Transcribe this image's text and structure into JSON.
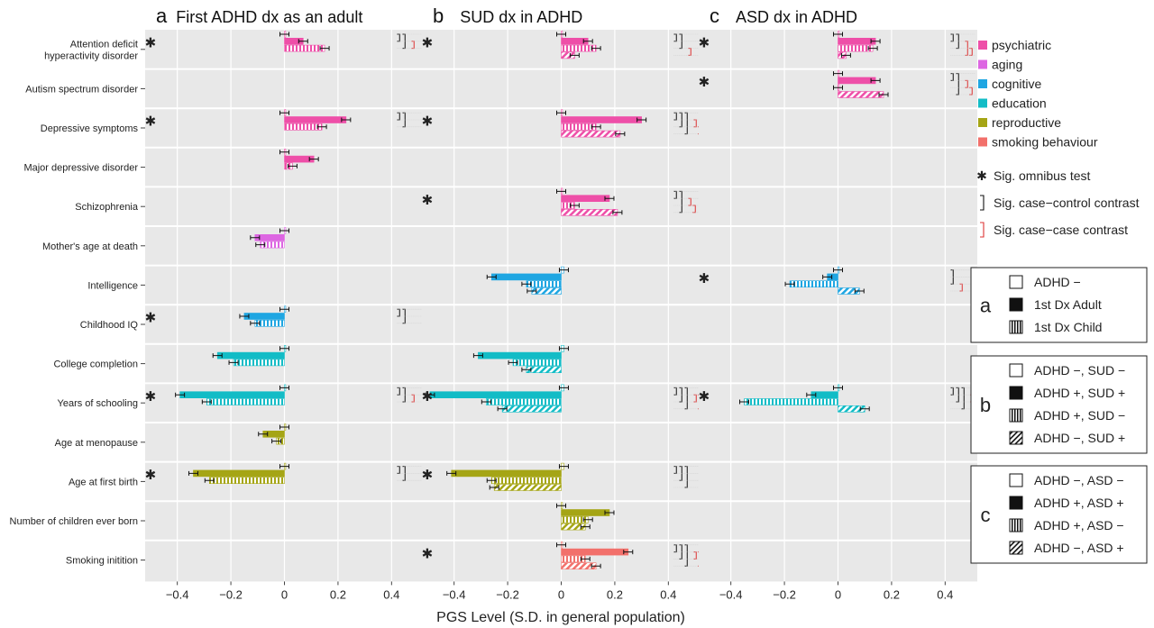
{
  "chart_data": {
    "type": "bar",
    "orientation": "horizontal",
    "xlabel": "PGS Level (S.D. in general population)",
    "xlim": [
      -0.52,
      0.52
    ],
    "xticks": [
      "−0.4",
      "−0.2",
      "0",
      "0.2",
      "0.4"
    ],
    "xtick_values": [
      -0.4,
      -0.2,
      0,
      0.2,
      0.4
    ],
    "grid": true,
    "traits": [
      {
        "name": "Attention deficit\nhyperactivity disorder",
        "domain": "psychiatric"
      },
      {
        "name": "Autism spectrum disorder",
        "domain": "psychiatric"
      },
      {
        "name": "Depressive symptoms",
        "domain": "psychiatric"
      },
      {
        "name": "Major depressive disorder",
        "domain": "psychiatric"
      },
      {
        "name": "Schizophrenia",
        "domain": "psychiatric"
      },
      {
        "name": "Mother's age at death",
        "domain": "aging"
      },
      {
        "name": "Intelligence",
        "domain": "cognitive"
      },
      {
        "name": "Childhood IQ",
        "domain": "cognitive"
      },
      {
        "name": "College completion",
        "domain": "education"
      },
      {
        "name": "Years of schooling",
        "domain": "education"
      },
      {
        "name": "Age at menopause",
        "domain": "reproductive"
      },
      {
        "name": "Age at first birth",
        "domain": "reproductive"
      },
      {
        "name": "Number of children ever born",
        "domain": "reproductive"
      },
      {
        "name": "Smoking initition",
        "domain": "smoking behaviour"
      }
    ],
    "domain_colors": {
      "psychiatric": "#ee4fa8",
      "aging": "#dd66e2",
      "cognitive": "#1fa6e2",
      "education": "#12bcc6",
      "reproductive": "#a5a515",
      "smoking behaviour": "#f2706b"
    },
    "panels": [
      {
        "letter": "a",
        "title": "First ADHD dx as an adult",
        "groups": [
          "ADHD −",
          "1st Dx Adult",
          "1st Dx Child"
        ],
        "rows": [
          {
            "values": [
              0.0,
              0.07,
              0.15
            ],
            "sig_omnibus": true,
            "cc": [
              [
                0,
                1
              ],
              [
                0,
                2
              ]
            ],
            "case_case": [
              [
                1,
                2
              ]
            ]
          },
          null,
          {
            "values": [
              0.0,
              0.23,
              0.14
            ],
            "sig_omnibus": true,
            "cc": [
              [
                0,
                1
              ],
              [
                0,
                2
              ]
            ],
            "case_case": []
          },
          {
            "values": [
              0.0,
              0.11,
              0.03
            ],
            "sig_omnibus": false,
            "cc": [],
            "case_case": []
          },
          null,
          {
            "values": [
              0.0,
              -0.11,
              -0.09
            ],
            "sig_omnibus": false,
            "cc": [],
            "case_case": []
          },
          null,
          {
            "values": [
              0.0,
              -0.15,
              -0.11
            ],
            "sig_omnibus": true,
            "cc": [
              [
                0,
                1
              ],
              [
                0,
                2
              ]
            ],
            "case_case": []
          },
          {
            "values": [
              0.0,
              -0.25,
              -0.19
            ],
            "sig_omnibus": false,
            "cc": [],
            "case_case": []
          },
          {
            "values": [
              0.0,
              -0.39,
              -0.29
            ],
            "sig_omnibus": true,
            "cc": [
              [
                0,
                1
              ],
              [
                0,
                2
              ]
            ],
            "case_case": [
              [
                1,
                2
              ]
            ]
          },
          {
            "values": [
              0.0,
              -0.08,
              -0.03
            ],
            "sig_omnibus": false,
            "cc": [],
            "case_case": []
          },
          {
            "values": [
              0.0,
              -0.34,
              -0.28
            ],
            "sig_omnibus": true,
            "cc": [
              [
                0,
                1
              ],
              [
                0,
                2
              ]
            ],
            "case_case": []
          },
          null,
          null
        ]
      },
      {
        "letter": "b",
        "title": "SUD dx in ADHD",
        "groups": [
          "ADHD −, SUD −",
          "ADHD +, SUD +",
          "ADHD +, SUD −",
          "ADHD −, SUD +"
        ],
        "rows": [
          {
            "values": [
              0.0,
              0.1,
              0.13,
              0.05
            ],
            "sig_omnibus": true,
            "cc": [
              [
                0,
                1
              ],
              [
                0,
                2
              ]
            ],
            "case_case": [
              [
                2,
                3
              ]
            ]
          },
          null,
          {
            "values": [
              0.0,
              0.3,
              0.13,
              0.22
            ],
            "sig_omnibus": true,
            "cc": [
              [
                0,
                1
              ],
              [
                0,
                2
              ],
              [
                0,
                3
              ]
            ],
            "case_case": [
              [
                1,
                2
              ],
              [
                2,
                3
              ]
            ]
          },
          null,
          {
            "values": [
              0.0,
              0.18,
              0.05,
              0.21
            ],
            "sig_omnibus": true,
            "cc": [
              [
                0,
                1
              ],
              [
                0,
                3
              ]
            ],
            "case_case": [
              [
                1,
                2
              ],
              [
                2,
                3
              ]
            ]
          },
          null,
          {
            "values": [
              0.01,
              -0.26,
              -0.13,
              -0.11
            ],
            "sig_omnibus": false,
            "cc": [],
            "case_case": []
          },
          null,
          {
            "values": [
              0.01,
              -0.31,
              -0.18,
              -0.13
            ],
            "sig_omnibus": false,
            "cc": [],
            "case_case": []
          },
          {
            "values": [
              0.01,
              -0.49,
              -0.28,
              -0.22
            ],
            "sig_omnibus": true,
            "cc": [
              [
                0,
                1
              ],
              [
                0,
                2
              ],
              [
                0,
                3
              ]
            ],
            "case_case": [
              [
                1,
                2
              ],
              [
                1,
                3
              ]
            ]
          },
          null,
          {
            "values": [
              0.01,
              -0.41,
              -0.26,
              -0.25
            ],
            "sig_omnibus": true,
            "cc": [
              [
                0,
                1
              ],
              [
                0,
                2
              ],
              [
                0,
                3
              ]
            ],
            "case_case": []
          },
          {
            "values": [
              0.0,
              0.18,
              0.1,
              0.09
            ],
            "sig_omnibus": false,
            "cc": [],
            "case_case": []
          },
          {
            "values": [
              0.0,
              0.25,
              0.09,
              0.13
            ],
            "sig_omnibus": true,
            "cc": [
              [
                0,
                1
              ],
              [
                0,
                2
              ],
              [
                0,
                3
              ]
            ],
            "case_case": [
              [
                1,
                2
              ],
              [
                1,
                3
              ]
            ]
          }
        ]
      },
      {
        "letter": "c",
        "title": "ASD dx in ADHD",
        "groups": [
          "ADHD −, ASD −",
          "ADHD +, ASD +",
          "ADHD +, ASD −",
          "ADHD −, ASD +"
        ],
        "rows": [
          {
            "values": [
              0.0,
              0.14,
              0.13,
              0.03
            ],
            "sig_omnibus": true,
            "cc": [
              [
                0,
                1
              ],
              [
                0,
                2
              ]
            ],
            "case_case": [
              [
                1,
                3
              ],
              [
                2,
                3
              ]
            ]
          },
          {
            "values": [
              0.0,
              0.14,
              0.0,
              0.17
            ],
            "sig_omnibus": true,
            "cc": [
              [
                0,
                1
              ],
              [
                0,
                3
              ]
            ],
            "case_case": [
              [
                1,
                2
              ],
              [
                2,
                3
              ]
            ]
          },
          null,
          null,
          null,
          null,
          {
            "values": [
              0.0,
              -0.04,
              -0.18,
              0.08
            ],
            "sig_omnibus": true,
            "cc": [
              [
                0,
                2
              ]
            ],
            "case_case": [
              [
                2,
                3
              ]
            ]
          },
          null,
          null,
          {
            "values": [
              0.0,
              -0.1,
              -0.35,
              0.1
            ],
            "sig_omnibus": true,
            "cc": [
              [
                0,
                1
              ],
              [
                0,
                2
              ],
              [
                0,
                3
              ]
            ],
            "case_case": [
              [
                1,
                2
              ],
              [
                2,
                3
              ]
            ]
          },
          null,
          null,
          null,
          null
        ]
      }
    ],
    "legend_domains_order": [
      "psychiatric",
      "aging",
      "cognitive",
      "education",
      "reproductive",
      "smoking behaviour"
    ],
    "legend_marks": [
      {
        "symbol": "✱",
        "label": "Sig. omnibus test"
      },
      {
        "symbol": "bracket-black",
        "label": "Sig. case−control contrast"
      },
      {
        "symbol": "bracket-red",
        "label": "Sig. case−case contrast"
      }
    ],
    "legend_groups": [
      {
        "letter": "a",
        "entries": [
          {
            "pattern": "open",
            "label": "ADHD −"
          },
          {
            "pattern": "solid",
            "label": "1st Dx Adult"
          },
          {
            "pattern": "vstripe",
            "label": "1st Dx Child"
          }
        ]
      },
      {
        "letter": "b",
        "entries": [
          {
            "pattern": "open",
            "label": "ADHD −, SUD −"
          },
          {
            "pattern": "solid",
            "label": "ADHD +, SUD +"
          },
          {
            "pattern": "vstripe",
            "label": "ADHD +, SUD −"
          },
          {
            "pattern": "diag",
            "label": "ADHD −, SUD +"
          }
        ]
      },
      {
        "letter": "c",
        "entries": [
          {
            "pattern": "open",
            "label": "ADHD −, ASD −"
          },
          {
            "pattern": "solid",
            "label": "ADHD +, ASD +"
          },
          {
            "pattern": "vstripe",
            "label": "ADHD +, ASD −"
          },
          {
            "pattern": "diag",
            "label": "ADHD −, ASD +"
          }
        ]
      }
    ]
  }
}
